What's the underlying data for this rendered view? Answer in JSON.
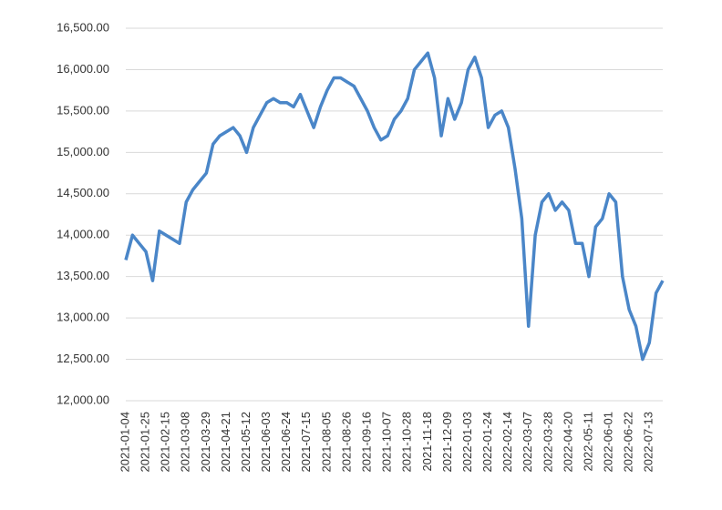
{
  "chart_data": {
    "type": "line",
    "categories": [
      "2021-01-04",
      null,
      null,
      "2021-01-25",
      null,
      null,
      "2021-02-15",
      null,
      null,
      "2021-03-08",
      null,
      null,
      "2021-03-29",
      null,
      null,
      "2021-04-21",
      null,
      null,
      "2021-05-12",
      null,
      null,
      "2021-06-03",
      null,
      null,
      "2021-06-24",
      null,
      null,
      "2021-07-15",
      null,
      null,
      "2021-08-05",
      null,
      null,
      "2021-08-26",
      null,
      null,
      "2021-09-16",
      null,
      null,
      "2021-10-07",
      null,
      null,
      "2021-10-28",
      null,
      null,
      "2021-11-18",
      null,
      null,
      "2021-12-09",
      null,
      null,
      "2022-01-03",
      null,
      null,
      "2022-01-24",
      null,
      null,
      "2022-02-14",
      null,
      null,
      "2022-03-07",
      null,
      null,
      "2022-03-28",
      null,
      null,
      "2022-04-20",
      null,
      null,
      "2022-05-11",
      null,
      null,
      "2022-06-01",
      null,
      null,
      "2022-06-22",
      null,
      null,
      "2022-07-13",
      null,
      null
    ],
    "values": [
      13700,
      14000,
      13900,
      13800,
      13450,
      14050,
      14000,
      13950,
      13900,
      14400,
      14550,
      14650,
      14750,
      15100,
      15200,
      15250,
      15300,
      15200,
      15000,
      15300,
      15450,
      15600,
      15650,
      15600,
      15600,
      15550,
      15700,
      15500,
      15300,
      15550,
      15750,
      15900,
      15900,
      15850,
      15800,
      15650,
      15500,
      15300,
      15150,
      15200,
      15400,
      15500,
      15650,
      16000,
      16100,
      16200,
      15900,
      15200,
      15650,
      15400,
      15600,
      16000,
      16150,
      15900,
      15300,
      15450,
      15500,
      15300,
      14800,
      14200,
      12900,
      14000,
      14400,
      14500,
      14300,
      14400,
      14300,
      13900,
      13900,
      13500,
      14100,
      14200,
      14500,
      14400,
      13500,
      13100,
      12900,
      12500,
      12700,
      13300,
      13450
    ],
    "color": "#4a86c8",
    "ylim": [
      12000,
      16500
    ],
    "yticks": [
      {
        "value": 12000,
        "label": "12,000.00"
      },
      {
        "value": 12500,
        "label": "12,500.00"
      },
      {
        "value": 13000,
        "label": "13,000.00"
      },
      {
        "value": 13500,
        "label": "13,500.00"
      },
      {
        "value": 14000,
        "label": "14,000.00"
      },
      {
        "value": 14500,
        "label": "14,500.00"
      },
      {
        "value": 15000,
        "label": "15,000.00"
      },
      {
        "value": 15500,
        "label": "15,500.00"
      },
      {
        "value": 16000,
        "label": "16,000.00"
      },
      {
        "value": 16500,
        "label": "16,500.00"
      }
    ],
    "grid": true
  }
}
